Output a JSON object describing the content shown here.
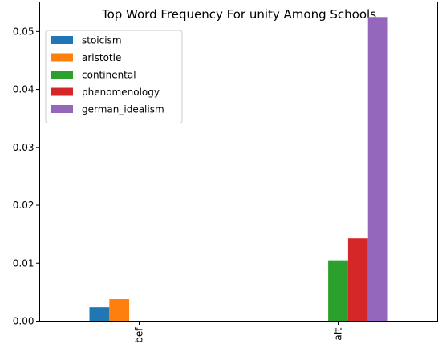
{
  "chart_data": {
    "type": "bar",
    "title": "Top Word Frequency For unity Among Schools",
    "xlabel": "",
    "ylabel": "",
    "categories": [
      "bef",
      "aft"
    ],
    "ylim": [
      0,
      0.0551
    ],
    "yticks": [
      "0.00",
      "0.01",
      "0.02",
      "0.03",
      "0.04",
      "0.05"
    ],
    "grid": false,
    "legend_position": "top-left",
    "series": [
      {
        "name": "stoicism",
        "color": "#1f77b4",
        "values": [
          0.0024,
          0
        ]
      },
      {
        "name": "aristotle",
        "color": "#ff7f0e",
        "values": [
          0.0038,
          0
        ]
      },
      {
        "name": "continental",
        "color": "#2ca02c",
        "values": [
          0,
          0.0105
        ]
      },
      {
        "name": "phenomenology",
        "color": "#d62728",
        "values": [
          0,
          0.0143
        ]
      },
      {
        "name": "german_idealism",
        "color": "#9467bd",
        "values": [
          0,
          0.0525
        ]
      }
    ]
  }
}
